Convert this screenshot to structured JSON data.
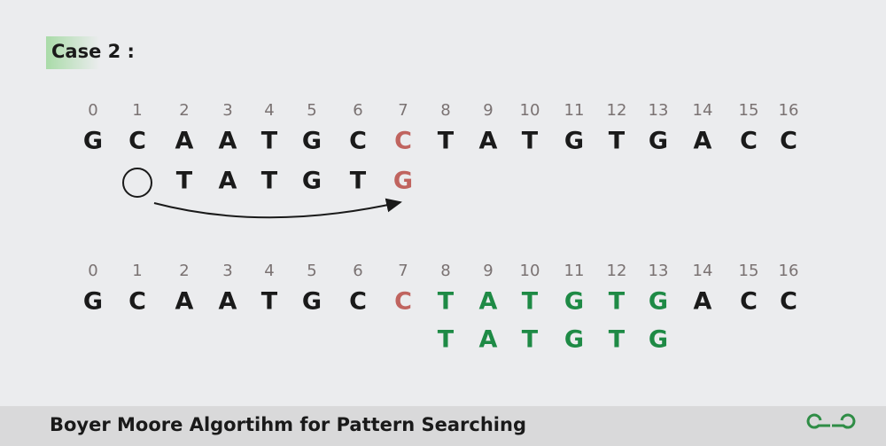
{
  "label": "Case 2 :",
  "top": {
    "indices": [
      0,
      1,
      2,
      3,
      4,
      5,
      6,
      7,
      8,
      9,
      10,
      11,
      12,
      13,
      14,
      15,
      16
    ],
    "text": [
      "G",
      "C",
      "A",
      "A",
      "T",
      "G",
      "C",
      "C",
      "T",
      "A",
      "T",
      "G",
      "T",
      "G",
      "A",
      "C",
      "C"
    ],
    "pattern": [
      "T",
      "A",
      "T",
      "G",
      "T",
      "G"
    ]
  },
  "bottom": {
    "indices": [
      0,
      1,
      2,
      3,
      4,
      5,
      6,
      7,
      8,
      9,
      10,
      11,
      12,
      13,
      14,
      15,
      16
    ],
    "text": [
      "G",
      "C",
      "A",
      "A",
      "T",
      "G",
      "C",
      "C",
      "T",
      "A",
      "T",
      "G",
      "T",
      "G",
      "A",
      "C",
      "C"
    ],
    "pattern": [
      "T",
      "A",
      "T",
      "G",
      "T",
      "G"
    ]
  },
  "footer": {
    "title": "Boyer Moore Algortihm for Pattern Searching"
  }
}
